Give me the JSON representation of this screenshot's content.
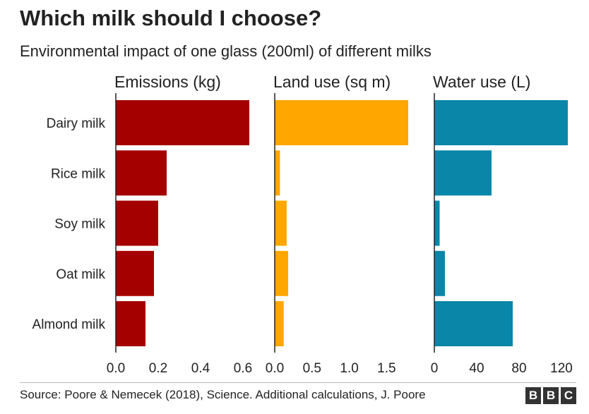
{
  "header": {
    "title": "Which milk should I choose?",
    "subtitle": "Environmental impact of one glass (200ml) of different milks"
  },
  "footer": {
    "source": "Source: Poore & Nemecek (2018), Science. Additional calculations, J. Poore",
    "logo": [
      "B",
      "B",
      "C"
    ]
  },
  "chart_data": {
    "type": "bar",
    "orientation": "horizontal",
    "categories": [
      "Dairy milk",
      "Rice milk",
      "Soy milk",
      "Oat milk",
      "Almond milk"
    ],
    "panels": [
      {
        "name": "Emissions (kg)",
        "color": "#a50000",
        "values": [
          0.63,
          0.24,
          0.2,
          0.18,
          0.14
        ],
        "xlim": [
          0,
          0.63
        ],
        "ticks": [
          0.0,
          0.2,
          0.4,
          0.6
        ],
        "tick_labels": [
          "0.0",
          "0.2",
          "0.4",
          "0.6"
        ]
      },
      {
        "name": "Land use (sq m)",
        "color": "#ffa600",
        "values": [
          1.79,
          0.07,
          0.16,
          0.18,
          0.12
        ],
        "xlim": [
          0,
          1.79
        ],
        "ticks": [
          0.0,
          0.5,
          1.0,
          1.5
        ],
        "tick_labels": [
          "0.0",
          "0.5",
          "1.0",
          "1.5"
        ]
      },
      {
        "name": "Water use (L)",
        "color": "#0a86a8",
        "values": [
          126,
          54,
          5,
          10,
          74
        ],
        "xlim": [
          0,
          126
        ],
        "ticks": [
          0,
          40,
          80,
          120
        ],
        "tick_labels": [
          "0",
          "40",
          "80",
          "120"
        ]
      }
    ]
  }
}
